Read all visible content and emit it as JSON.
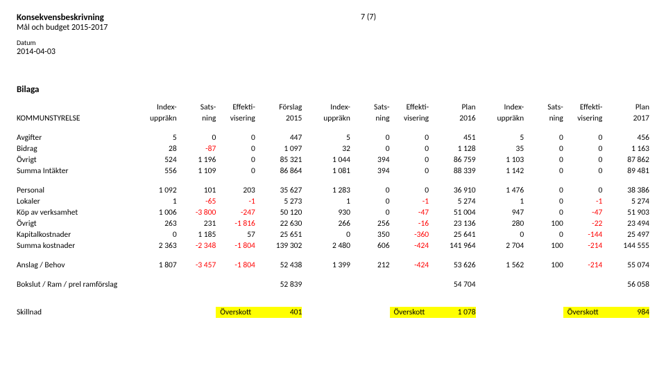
{
  "header": {
    "title": "Konsekvensbeskrivning",
    "subtitle": "Mål och budget 2015-2017",
    "date_label": "Datum",
    "date_value": "2014-04-03",
    "page_num": "7 (7)"
  },
  "bilaga": "Bilaga",
  "col_headers": {
    "kommun": "KOMMUNSTYRELSE",
    "index_top": "Index-",
    "index_bot": "uppräkn",
    "sats_top": "Sats-",
    "sats_bot": "ning",
    "eff_top": "Effekti-",
    "eff_bot": "visering",
    "forslag_top": "Förslag",
    "y2015": "2015",
    "plan_top": "Plan",
    "y2016": "2016",
    "y2017": "2017"
  },
  "rows": {
    "avgifter": {
      "label": "Avgifter",
      "a1": "5",
      "a2": "0",
      "a3": "0",
      "a4": "447",
      "b1": "5",
      "b2": "0",
      "b3": "0",
      "b4": "451",
      "c1": "5",
      "c2": "0",
      "c3": "0",
      "c4": "456"
    },
    "bidrag": {
      "label": "Bidrag",
      "a1": "28",
      "a2": "-87",
      "a3": "0",
      "a4": "1 097",
      "b1": "32",
      "b2": "0",
      "b3": "0",
      "b4": "1 128",
      "c1": "35",
      "c2": "0",
      "c3": "0",
      "c4": "1 163"
    },
    "ovrigt1": {
      "label": "Övrigt",
      "a1": "524",
      "a2": "1 196",
      "a3": "0",
      "a4": "85 321",
      "b1": "1 044",
      "b2": "394",
      "b3": "0",
      "b4": "86 759",
      "c1": "1 103",
      "c2": "0",
      "c3": "0",
      "c4": "87 862"
    },
    "summaint": {
      "label": "Summa Intäkter",
      "a1": "556",
      "a2": "1 109",
      "a3": "0",
      "a4": "86 864",
      "b1": "1 081",
      "b2": "394",
      "b3": "0",
      "b4": "88 339",
      "c1": "1 142",
      "c2": "0",
      "c3": "0",
      "c4": "89 481"
    },
    "personal": {
      "label": "Personal",
      "a1": "1 092",
      "a2": "101",
      "a3": "203",
      "a4": "35 627",
      "b1": "1 283",
      "b2": "0",
      "b3": "0",
      "b4": "36 910",
      "c1": "1 476",
      "c2": "0",
      "c3": "0",
      "c4": "38 386"
    },
    "lokaler": {
      "label": "Lokaler",
      "a1": "1",
      "a2": "-65",
      "a3": "-1",
      "a4": "5 273",
      "b1": "1",
      "b2": "0",
      "b3": "-1",
      "b4": "5 274",
      "c1": "1",
      "c2": "0",
      "c3": "-1",
      "c4": "5 274"
    },
    "kop": {
      "label": "Köp av verksamhet",
      "a1": "1 006",
      "a2": "-3 800",
      "a3": "-247",
      "a4": "50 120",
      "b1": "930",
      "b2": "0",
      "b3": "-47",
      "b4": "51 004",
      "c1": "947",
      "c2": "0",
      "c3": "-47",
      "c4": "51 903"
    },
    "ovrigt2": {
      "label": "Övrigt",
      "a1": "263",
      "a2": "231",
      "a3": "-1 816",
      "a4": "22 630",
      "b1": "266",
      "b2": "256",
      "b3": "-16",
      "b4": "23 136",
      "c1": "280",
      "c2": "100",
      "c3": "-22",
      "c4": "23 494"
    },
    "kapital": {
      "label": "Kapitalkostnader",
      "a1": "0",
      "a2": "1 185",
      "a3": "57",
      "a4": "25 651",
      "b1": "0",
      "b2": "350",
      "b3": "-360",
      "b4": "25 641",
      "c1": "0",
      "c2": "0",
      "c3": "-144",
      "c4": "25 497"
    },
    "summakost": {
      "label": "Summa kostnader",
      "a1": "2 363",
      "a2": "-2 348",
      "a3": "-1 804",
      "a4": "139 302",
      "b1": "2 480",
      "b2": "606",
      "b3": "-424",
      "b4": "141 964",
      "c1": "2 704",
      "c2": "100",
      "c3": "-214",
      "c4": "144 555"
    },
    "anslag": {
      "label": "Anslag / Behov",
      "a1": "1 807",
      "a2": "-3 457",
      "a3": "-1 804",
      "a4": "52 438",
      "b1": "1 399",
      "b2": "212",
      "b3": "-424",
      "b4": "53 626",
      "c1": "1 562",
      "c2": "100",
      "c3": "-214",
      "c4": "55 074"
    },
    "bokslut": {
      "label": "Bokslut / Ram / prel ramförslag",
      "a4": "52 839",
      "b4": "54 704",
      "c4": "56 058"
    }
  },
  "skillnad": {
    "label": "Skillnad",
    "over": "Överskott",
    "v1": "401",
    "v2": "1 078",
    "v3": "984"
  },
  "colors": {
    "neg": "#ff0000",
    "highlight_bg": "#ffff00"
  }
}
